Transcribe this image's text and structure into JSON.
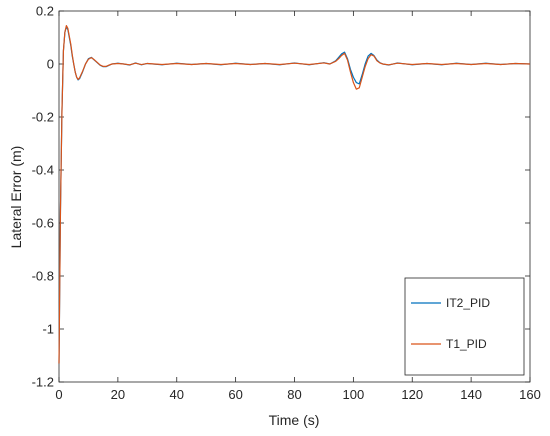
{
  "chart_data": {
    "type": "line",
    "title": "",
    "xlabel": "Time (s)",
    "ylabel": "Lateral Error (m)",
    "xlim": [
      0,
      160
    ],
    "ylim": [
      -1.2,
      0.2
    ],
    "xticks": [
      0,
      20,
      40,
      60,
      80,
      100,
      120,
      140,
      160
    ],
    "yticks": [
      -1.2,
      -1,
      -0.8,
      -0.6,
      -0.4,
      -0.2,
      0,
      0.2
    ],
    "ytick_labels": [
      "-1.2",
      "-1",
      "-0.8",
      "-0.6",
      "-0.4",
      "-0.2",
      "0",
      "0.2"
    ],
    "grid": false,
    "legend": "bottom-right",
    "series": [
      {
        "name": "IT2_PID",
        "color": "#0072BD",
        "x": [
          0,
          0.5,
          1,
          1.5,
          2,
          2.5,
          3,
          3.5,
          4,
          4.5,
          5,
          5.5,
          6,
          6.5,
          7,
          8,
          9,
          10,
          11,
          12,
          13,
          14,
          15,
          16,
          17,
          18,
          20,
          22,
          24,
          26,
          28,
          30,
          35,
          40,
          45,
          50,
          55,
          60,
          65,
          70,
          75,
          80,
          85,
          90,
          92,
          94,
          95,
          96,
          97,
          98,
          99,
          100,
          101,
          102,
          103,
          104,
          105,
          106,
          107,
          108,
          109,
          110,
          112,
          115,
          120,
          125,
          130,
          135,
          140,
          145,
          150,
          155,
          160
        ],
        "y": [
          -1.13,
          -0.55,
          -0.18,
          0.05,
          0.12,
          0.14,
          0.13,
          0.1,
          0.07,
          0.03,
          0.0,
          -0.03,
          -0.05,
          -0.06,
          -0.055,
          -0.03,
          0.0,
          0.02,
          0.025,
          0.015,
          0.005,
          -0.005,
          -0.01,
          -0.01,
          -0.005,
          0.0,
          0.003,
          0.0,
          -0.004,
          0.004,
          -0.003,
          0.002,
          -0.003,
          0.003,
          -0.002,
          0.002,
          -0.003,
          0.003,
          -0.002,
          0.002,
          -0.003,
          0.004,
          -0.003,
          0.005,
          0.0,
          0.012,
          0.025,
          0.038,
          0.045,
          0.02,
          -0.02,
          -0.05,
          -0.07,
          -0.075,
          -0.04,
          0.0,
          0.03,
          0.04,
          0.032,
          0.015,
          0.005,
          0.0,
          -0.004,
          0.004,
          -0.003,
          0.002,
          -0.003,
          0.003,
          -0.002,
          0.003,
          -0.002,
          0.002,
          0.0
        ]
      },
      {
        "name": "T1_PID",
        "color": "#D95319",
        "x": [
          0,
          0.5,
          1,
          1.5,
          2,
          2.5,
          3,
          3.5,
          4,
          4.5,
          5,
          5.5,
          6,
          6.5,
          7,
          8,
          9,
          10,
          11,
          12,
          13,
          14,
          15,
          16,
          17,
          18,
          20,
          22,
          24,
          26,
          28,
          30,
          35,
          40,
          45,
          50,
          55,
          60,
          65,
          70,
          75,
          80,
          85,
          90,
          92,
          94,
          95,
          96,
          97,
          98,
          99,
          100,
          101,
          102,
          103,
          104,
          105,
          106,
          107,
          108,
          109,
          110,
          112,
          115,
          120,
          125,
          130,
          135,
          140,
          145,
          150,
          155,
          160
        ],
        "y": [
          -1.13,
          -0.55,
          -0.18,
          0.05,
          0.12,
          0.145,
          0.135,
          0.105,
          0.075,
          0.035,
          0.0,
          -0.03,
          -0.05,
          -0.058,
          -0.052,
          -0.028,
          0.0,
          0.018,
          0.024,
          0.016,
          0.006,
          -0.004,
          -0.009,
          -0.009,
          -0.004,
          0.0,
          0.002,
          0.0,
          -0.003,
          0.003,
          -0.002,
          0.002,
          -0.002,
          0.002,
          -0.002,
          0.002,
          -0.002,
          0.002,
          -0.002,
          0.002,
          -0.002,
          0.003,
          -0.002,
          0.004,
          0.0,
          0.01,
          0.02,
          0.032,
          0.04,
          0.015,
          -0.03,
          -0.07,
          -0.095,
          -0.09,
          -0.05,
          -0.01,
          0.02,
          0.035,
          0.03,
          0.012,
          0.004,
          0.0,
          -0.003,
          0.003,
          -0.002,
          0.002,
          -0.002,
          0.002,
          -0.002,
          0.002,
          -0.002,
          0.002,
          0.0
        ]
      }
    ]
  }
}
